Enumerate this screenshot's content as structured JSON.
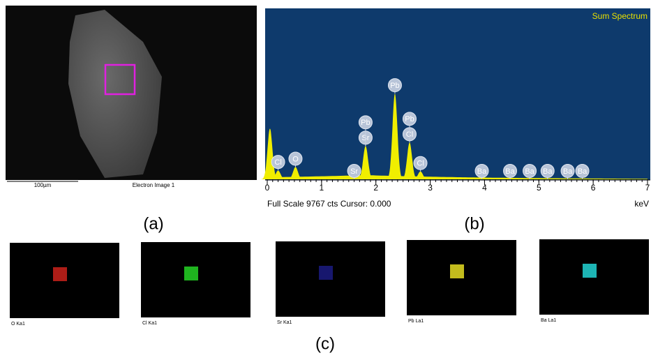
{
  "panel_a": {
    "label": "(a)",
    "scale_bar": "100µm",
    "caption": "Electron Image 1"
  },
  "panel_b": {
    "label": "(b)",
    "title": "Sum Spectrum",
    "footer": "Full Scale 9767 cts Cursor: 0.000",
    "unit": "keV",
    "full_scale": 9767,
    "xlim": [
      0,
      7
    ],
    "xticks": [
      0,
      1,
      2,
      3,
      4,
      5,
      6,
      7
    ],
    "peaks": [
      {
        "energy": 0.05,
        "height": 2900
      },
      {
        "energy": 0.2,
        "height": 500
      },
      {
        "energy": 0.52,
        "height": 700
      },
      {
        "energy": 1.81,
        "height": 1900
      },
      {
        "energy": 2.35,
        "height": 4900
      },
      {
        "energy": 2.62,
        "height": 2100
      },
      {
        "energy": 2.82,
        "height": 450
      }
    ],
    "labels": [
      {
        "text": "Cl",
        "energy": 0.2
      },
      {
        "text": "O",
        "energy": 0.52
      },
      {
        "text": "Sr",
        "energy": 1.6
      },
      {
        "text": "Sr",
        "energy": 1.81
      },
      {
        "text": "Pb",
        "energy": 1.81
      },
      {
        "text": "Pb",
        "energy": 2.35
      },
      {
        "text": "Cl",
        "energy": 2.62
      },
      {
        "text": "Pb",
        "energy": 2.62
      },
      {
        "text": "Cl",
        "energy": 2.82
      },
      {
        "text": "Ba",
        "energy": 3.95
      },
      {
        "text": "Ba",
        "energy": 4.47
      },
      {
        "text": "Ba",
        "energy": 4.83
      },
      {
        "text": "Ba",
        "energy": 5.16
      },
      {
        "text": "Ba",
        "energy": 5.53
      },
      {
        "text": "Ba",
        "energy": 5.8
      }
    ]
  },
  "panel_c": {
    "label": "(c)",
    "maps": [
      {
        "name": "O Ka1",
        "color": "#c0201a"
      },
      {
        "name": "Cl Ka1",
        "color": "#22c822"
      },
      {
        "name": "Sr Ka1",
        "color": "#1a1a7a"
      },
      {
        "name": "Pb La1",
        "color": "#d8d020"
      },
      {
        "name": "Ba La1",
        "color": "#20c8c8"
      }
    ]
  }
}
